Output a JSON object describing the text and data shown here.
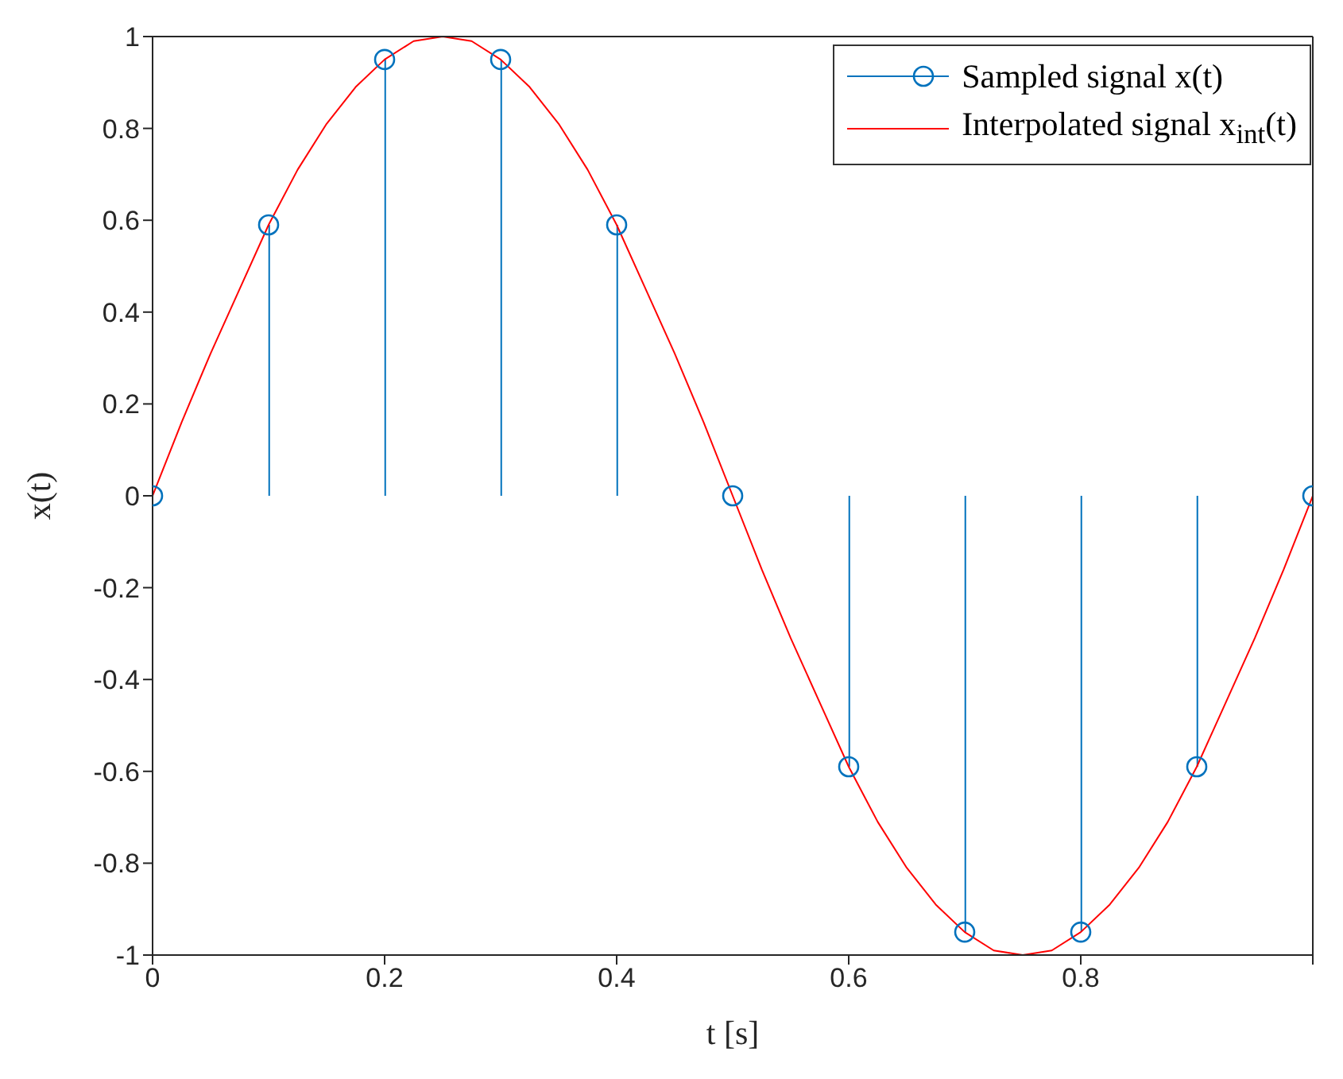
{
  "chart_data": {
    "type": "line",
    "xlabel": "t [s]",
    "ylabel": "x(t)",
    "xlim": [
      0,
      1
    ],
    "ylim": [
      -1,
      1
    ],
    "xticks": [
      0,
      0.2,
      0.4,
      0.6,
      0.8,
      {
        "value": 1,
        "label": null
      }
    ],
    "yticks": [
      -1,
      -0.8,
      -0.6,
      -0.4,
      -0.2,
      0,
      0.2,
      0.4,
      0.6,
      0.8,
      1
    ],
    "grid": false,
    "legend": "top right",
    "series": [
      {
        "name": "Sampled signal x(t)",
        "type": "lollipop",
        "marker": "circle",
        "color": "#0072bd",
        "x": [
          0,
          0.1,
          0.2,
          0.3,
          0.4,
          0.5,
          0.6,
          0.7,
          0.8,
          0.9,
          1
        ],
        "values": [
          0,
          0.59,
          0.95,
          0.95,
          0.59,
          0,
          -0.59,
          -0.95,
          -0.95,
          -0.59,
          0
        ]
      },
      {
        "name": "Interpolated signal x$_{int}$(t)",
        "marker": "none",
        "color": "#ff0000",
        "x": [
          0,
          0.025,
          0.05,
          0.075,
          0.1,
          0.125,
          0.15,
          0.175,
          0.2,
          0.225,
          0.25,
          0.275,
          0.3,
          0.325,
          0.35,
          0.375,
          0.4,
          0.425,
          0.45,
          0.475,
          0.5,
          0.525,
          0.55,
          0.575,
          0.6,
          0.625,
          0.65,
          0.675,
          0.7,
          0.725,
          0.75,
          0.775,
          0.8,
          0.825,
          0.85,
          0.875,
          0.9,
          0.925,
          0.95,
          0.975,
          1
        ],
        "values": [
          0,
          0.16,
          0.31,
          0.45,
          0.59,
          0.71,
          0.81,
          0.89,
          0.95,
          0.99,
          1,
          0.99,
          0.95,
          0.89,
          0.81,
          0.71,
          0.59,
          0.45,
          0.31,
          0.16,
          0,
          -0.16,
          -0.31,
          -0.45,
          -0.59,
          -0.71,
          -0.81,
          -0.89,
          -0.95,
          -0.99,
          -1,
          -0.99,
          -0.95,
          -0.89,
          -0.81,
          -0.71,
          -0.59,
          -0.45,
          -0.31,
          -0.16,
          0
        ]
      }
    ]
  }
}
